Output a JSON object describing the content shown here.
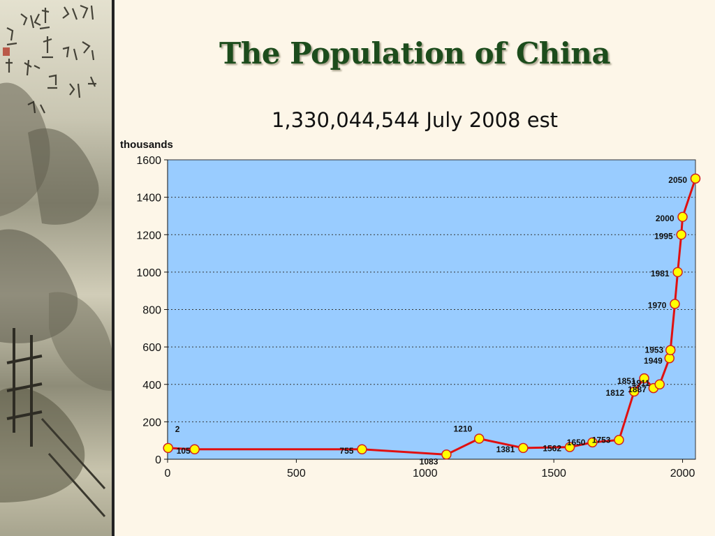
{
  "slide": {
    "title": "The Population of China",
    "subtitle": "1,330,044,544  July 2008 est"
  },
  "colors": {
    "plot_background": "#99ccff",
    "line": "#e01010",
    "marker_fill": "#ffff00",
    "marker_stroke": "#d02020",
    "title": "#1c4c1c"
  },
  "chart_data": {
    "type": "line",
    "title": "",
    "xlabel": "",
    "ylabel": "thousands",
    "xlim": [
      0,
      2050
    ],
    "ylim": [
      0,
      1600
    ],
    "x_ticks": [
      0,
      500,
      1000,
      1500,
      2000
    ],
    "y_ticks": [
      0,
      200,
      400,
      600,
      800,
      1000,
      1200,
      1400,
      1600
    ],
    "grid": "horizontal dotted",
    "legend": "none",
    "series": [
      {
        "points": [
          {
            "x": 2,
            "y": 60,
            "label": "2"
          },
          {
            "x": 105,
            "y": 53,
            "label": "105"
          },
          {
            "x": 755,
            "y": 53,
            "label": "755"
          },
          {
            "x": 1083,
            "y": 25,
            "label": "1083"
          },
          {
            "x": 1210,
            "y": 110,
            "label": "1210"
          },
          {
            "x": 1381,
            "y": 60,
            "label": "1381"
          },
          {
            "x": 1562,
            "y": 65,
            "label": "1562"
          },
          {
            "x": 1650,
            "y": 90,
            "label": "1650"
          },
          {
            "x": 1753,
            "y": 103,
            "label": "1753"
          },
          {
            "x": 1812,
            "y": 362,
            "label": "1812"
          },
          {
            "x": 1851,
            "y": 432,
            "label": "1851"
          },
          {
            "x": 1887,
            "y": 380,
            "label": "1887"
          },
          {
            "x": 1911,
            "y": 400,
            "label": "1911"
          },
          {
            "x": 1949,
            "y": 540,
            "label": "1949"
          },
          {
            "x": 1953,
            "y": 583,
            "label": "1953"
          },
          {
            "x": 1970,
            "y": 830,
            "label": "1970"
          },
          {
            "x": 1981,
            "y": 1000,
            "label": "1981"
          },
          {
            "x": 1995,
            "y": 1200,
            "label": "1995"
          },
          {
            "x": 2000,
            "y": 1295,
            "label": "2000"
          },
          {
            "x": 2050,
            "y": 1500,
            "label": "2050"
          }
        ]
      }
    ]
  }
}
